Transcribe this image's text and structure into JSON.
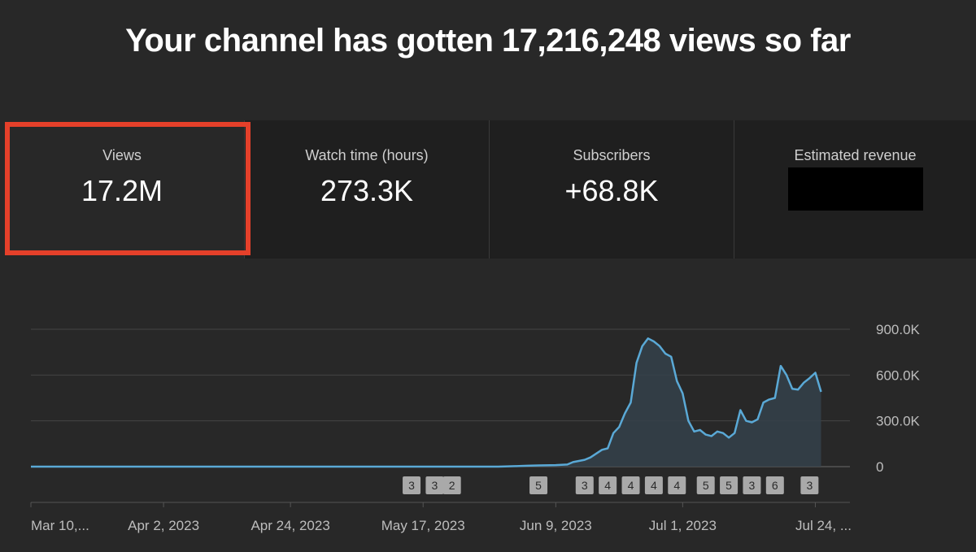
{
  "headline": "Your channel has gotten 17,216,248 views so far",
  "metrics": [
    {
      "label": "Views",
      "value": "17.2M",
      "selected": true
    },
    {
      "label": "Watch time (hours)",
      "value": "273.3K"
    },
    {
      "label": "Subscribers",
      "value": "+68.8K"
    },
    {
      "label": "Estimated revenue",
      "value": "",
      "redacted": true
    }
  ],
  "colors": {
    "background": "#282828",
    "card": "#1f1f1f",
    "highlight": "#e5402a",
    "line": "#5aa9d6"
  },
  "chart_data": {
    "type": "area",
    "y_axis_labels": [
      "900.0K",
      "600.0K",
      "300.0K",
      "0"
    ],
    "y_ticks": [
      900000,
      600000,
      300000,
      0
    ],
    "ylim": [
      0,
      900000
    ],
    "x_labels": [
      "Mar 10,...",
      "Apr 2, 2023",
      "Apr 24, 2023",
      "May 17, 2023",
      "Jun 9, 2023",
      "Jul 1, 2023",
      "Jul 24, ..."
    ],
    "x_label_dates": [
      "2023-03-10",
      "2023-04-02",
      "2023-04-24",
      "2023-05-17",
      "2023-06-09",
      "2023-07-01",
      "2023-07-24"
    ],
    "x_range": [
      "2023-03-10",
      "2023-07-30"
    ],
    "grid": true,
    "series": [
      {
        "points": [
          [
            "2023-03-10",
            0
          ],
          [
            "2023-04-10",
            0
          ],
          [
            "2023-05-10",
            0
          ],
          [
            "2023-05-30",
            0
          ],
          [
            "2023-06-02",
            3000
          ],
          [
            "2023-06-04",
            6000
          ],
          [
            "2023-06-06",
            8000
          ],
          [
            "2023-06-09",
            10000
          ],
          [
            "2023-06-11",
            14000
          ],
          [
            "2023-06-12",
            30000
          ],
          [
            "2023-06-14",
            45000
          ],
          [
            "2023-06-15",
            60000
          ],
          [
            "2023-06-17",
            110000
          ],
          [
            "2023-06-18",
            120000
          ],
          [
            "2023-06-19",
            220000
          ],
          [
            "2023-06-20",
            260000
          ],
          [
            "2023-06-21",
            350000
          ],
          [
            "2023-06-22",
            420000
          ],
          [
            "2023-06-23",
            680000
          ],
          [
            "2023-06-24",
            790000
          ],
          [
            "2023-06-25",
            840000
          ],
          [
            "2023-06-26",
            820000
          ],
          [
            "2023-06-27",
            790000
          ],
          [
            "2023-06-28",
            740000
          ],
          [
            "2023-06-29",
            720000
          ],
          [
            "2023-06-30",
            560000
          ],
          [
            "2023-07-01",
            480000
          ],
          [
            "2023-07-02",
            300000
          ],
          [
            "2023-07-03",
            230000
          ],
          [
            "2023-07-04",
            240000
          ],
          [
            "2023-07-05",
            210000
          ],
          [
            "2023-07-06",
            200000
          ],
          [
            "2023-07-07",
            230000
          ],
          [
            "2023-07-08",
            220000
          ],
          [
            "2023-07-09",
            190000
          ],
          [
            "2023-07-10",
            220000
          ],
          [
            "2023-07-11",
            370000
          ],
          [
            "2023-07-12",
            300000
          ],
          [
            "2023-07-13",
            290000
          ],
          [
            "2023-07-14",
            310000
          ],
          [
            "2023-07-15",
            420000
          ],
          [
            "2023-07-16",
            440000
          ],
          [
            "2023-07-17",
            450000
          ],
          [
            "2023-07-18",
            660000
          ],
          [
            "2023-07-19",
            600000
          ],
          [
            "2023-07-20",
            510000
          ],
          [
            "2023-07-21",
            505000
          ],
          [
            "2023-07-22",
            550000
          ],
          [
            "2023-07-23",
            580000
          ],
          [
            "2023-07-24",
            615000
          ],
          [
            "2023-07-25",
            490000
          ]
        ]
      }
    ],
    "markers": [
      {
        "date": "2023-05-15",
        "label": "3"
      },
      {
        "date": "2023-05-19",
        "label": "3"
      },
      {
        "date": "2023-05-22",
        "label": "2"
      },
      {
        "date": "2023-06-06",
        "label": "5"
      },
      {
        "date": "2023-06-14",
        "label": "3"
      },
      {
        "date": "2023-06-18",
        "label": "4"
      },
      {
        "date": "2023-06-22",
        "label": "4"
      },
      {
        "date": "2023-06-26",
        "label": "4"
      },
      {
        "date": "2023-06-30",
        "label": "4"
      },
      {
        "date": "2023-07-05",
        "label": "5"
      },
      {
        "date": "2023-07-09",
        "label": "5"
      },
      {
        "date": "2023-07-13",
        "label": "3"
      },
      {
        "date": "2023-07-17",
        "label": "6"
      },
      {
        "date": "2023-07-23",
        "label": "3"
      }
    ]
  }
}
